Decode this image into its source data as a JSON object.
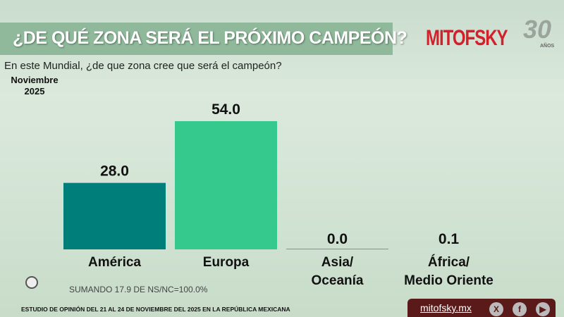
{
  "header": {
    "title": "¿DE QUÉ ZONA SERÁ EL PRÓXIMO CAMPEÓN?",
    "logo": "MITOFSKY",
    "logo_badge": "30",
    "logo_badge_sub": "AÑOS"
  },
  "question": "En este Mundial, ¿de que zona cree que será el campeón?",
  "period": {
    "month": "Noviembre",
    "year": "2025"
  },
  "note": "SUMANDO 17.9 DE NS/NC=100.0%",
  "footer": "ESTUDIO DE OPINIÓN DEL 21 AL 24 DE NOVIEMBRE DEL 2025 EN LA REPÚBLICA MEXICANA",
  "social": {
    "site": "mitofsky.mx",
    "x": "X",
    "facebook": "f",
    "youtube": "▶"
  },
  "chart_data": {
    "type": "bar",
    "title": "¿DE QUÉ ZONA SERÁ EL PRÓXIMO CAMPEÓN?",
    "categories": [
      [
        "América"
      ],
      [
        "Europa"
      ],
      [
        "Asia/",
        "Oceanía"
      ],
      [
        "África/",
        "Medio Oriente"
      ]
    ],
    "values": [
      28.0,
      54.0,
      0.0,
      0.1
    ],
    "value_labels": [
      "28.0",
      "54.0",
      "0.0",
      "0.1"
    ],
    "colors": [
      "#007f7a",
      "#35c98e",
      "#2fbf8a",
      "#d9e9a0"
    ],
    "ylim": [
      0,
      54
    ],
    "xlabel": "",
    "ylabel": ""
  }
}
